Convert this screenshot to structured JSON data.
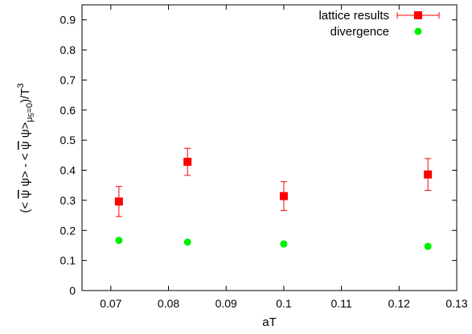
{
  "chart_data": {
    "type": "scatter",
    "xlabel": "aT",
    "ylabel": {
      "lead": "(< ",
      "psi_bar_1": "ψ",
      "mid1": " ψ> - < ",
      "psi_bar_2": "ψ",
      "mid2": " ψ>",
      "sub": "μ",
      "sub2": "5",
      "sub3": "=0",
      "tail": ")/T",
      "sup": "3"
    },
    "xlim": [
      0.065,
      0.13
    ],
    "ylim": [
      0,
      0.95
    ],
    "xticks": [
      "0.07",
      "0.08",
      "0.09",
      "0.1",
      "0.11",
      "0.12",
      "0.13"
    ],
    "xtick_values": [
      0.07,
      0.08,
      0.09,
      0.1,
      0.11,
      0.12,
      0.13
    ],
    "yticks": [
      "0",
      "0.1",
      "0.2",
      "0.3",
      "0.4",
      "0.5",
      "0.6",
      "0.7",
      "0.8",
      "0.9"
    ],
    "ytick_values": [
      0,
      0.1,
      0.2,
      0.3,
      0.4,
      0.5,
      0.6,
      0.7,
      0.8,
      0.9
    ],
    "legend_position": "top-right",
    "series": [
      {
        "name": "lattice results",
        "marker": "square",
        "color": "#ff0000",
        "x": [
          0.0714,
          0.0833,
          0.1,
          0.125
        ],
        "y": [
          0.296,
          0.428,
          0.314,
          0.386
        ],
        "err": [
          0.05,
          0.045,
          0.048,
          0.053
        ]
      },
      {
        "name": "divergence",
        "marker": "circle",
        "color": "#00ee00",
        "x": [
          0.0714,
          0.0833,
          0.1,
          0.125
        ],
        "y": [
          0.167,
          0.161,
          0.155,
          0.147
        ]
      }
    ]
  }
}
